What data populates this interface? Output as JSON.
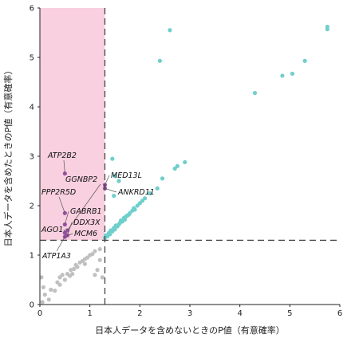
{
  "chart_data": {
    "type": "scatter",
    "title": "",
    "xlabel": "日本人データを含めないときのP値（有意確率）",
    "ylabel": "日本人データを含めたときのP値（有意確率）",
    "xlim": [
      0,
      6
    ],
    "ylim": [
      0,
      6
    ],
    "xticks": [
      "0",
      "1",
      "2",
      "3",
      "4",
      "5",
      "6"
    ],
    "yticks": [
      "0",
      "1",
      "2",
      "3",
      "4",
      "5",
      "6"
    ],
    "threshold": 1.3,
    "highlight_region": {
      "x": [
        0,
        1.3
      ],
      "y": [
        1.3,
        6
      ]
    },
    "colors": {
      "gray": "#c0c0c0",
      "teal": "#6fcfcc",
      "purple": "#9a4fa6",
      "region": "#f9d0df",
      "dashed": "#444444"
    },
    "series": [
      {
        "color": "gray",
        "points": [
          [
            0.05,
            0.05
          ],
          [
            0.1,
            0.2
          ],
          [
            0.18,
            0.1
          ],
          [
            0.22,
            0.3
          ],
          [
            0.3,
            0.28
          ],
          [
            0.35,
            0.45
          ],
          [
            0.4,
            0.4
          ],
          [
            0.45,
            0.6
          ],
          [
            0.5,
            0.5
          ],
          [
            0.55,
            0.62
          ],
          [
            0.6,
            0.58
          ],
          [
            0.62,
            0.7
          ],
          [
            0.68,
            0.72
          ],
          [
            0.72,
            0.8
          ],
          [
            0.75,
            0.76
          ],
          [
            0.8,
            0.85
          ],
          [
            0.85,
            0.88
          ],
          [
            0.9,
            0.92
          ],
          [
            0.95,
            0.95
          ],
          [
            1.0,
            1.0
          ],
          [
            1.05,
            1.02
          ],
          [
            1.1,
            1.08
          ],
          [
            1.2,
            0.9
          ],
          [
            1.15,
            0.7
          ],
          [
            1.25,
            0.55
          ],
          [
            1.2,
            1.12
          ],
          [
            1.1,
            0.6
          ],
          [
            0.03,
            0.55
          ],
          [
            0.07,
            0.35
          ],
          [
            0.4,
            0.55
          ],
          [
            0.9,
            0.82
          ],
          [
            0.65,
            0.62
          ]
        ]
      },
      {
        "color": "teal",
        "points": [
          [
            1.3,
            1.35
          ],
          [
            1.32,
            1.4
          ],
          [
            1.35,
            1.38
          ],
          [
            1.38,
            1.45
          ],
          [
            1.4,
            1.42
          ],
          [
            1.42,
            1.5
          ],
          [
            1.45,
            1.48
          ],
          [
            1.48,
            1.55
          ],
          [
            1.5,
            1.52
          ],
          [
            1.52,
            1.6
          ],
          [
            1.55,
            1.58
          ],
          [
            1.58,
            1.62
          ],
          [
            1.6,
            1.65
          ],
          [
            1.62,
            1.7
          ],
          [
            1.65,
            1.68
          ],
          [
            1.68,
            1.75
          ],
          [
            1.7,
            1.72
          ],
          [
            1.72,
            1.78
          ],
          [
            1.75,
            1.8
          ],
          [
            1.78,
            1.82
          ],
          [
            1.8,
            1.85
          ],
          [
            1.85,
            1.9
          ],
          [
            1.88,
            1.95
          ],
          [
            1.9,
            1.92
          ],
          [
            1.95,
            2.0
          ],
          [
            2.0,
            2.05
          ],
          [
            2.05,
            2.1
          ],
          [
            2.1,
            2.15
          ],
          [
            2.2,
            2.25
          ],
          [
            2.35,
            2.35
          ],
          [
            2.45,
            2.55
          ],
          [
            2.75,
            2.8
          ],
          [
            2.9,
            2.88
          ],
          [
            1.48,
            2.2
          ],
          [
            1.5,
            2.6
          ],
          [
            1.45,
            2.95
          ],
          [
            1.58,
            2.5
          ],
          [
            2.7,
            2.75
          ],
          [
            2.4,
            4.93
          ],
          [
            2.6,
            5.55
          ],
          [
            4.3,
            4.28
          ],
          [
            4.85,
            4.63
          ],
          [
            5.05,
            4.67
          ],
          [
            5.3,
            4.93
          ],
          [
            5.75,
            5.62
          ],
          [
            5.75,
            5.57
          ]
        ]
      },
      {
        "color": "purple",
        "points": [
          [
            0.5,
            2.65
          ],
          [
            1.3,
            2.42
          ],
          [
            1.3,
            2.35
          ],
          [
            0.5,
            1.85
          ],
          [
            0.5,
            1.62
          ],
          [
            0.55,
            1.5
          ],
          [
            0.5,
            1.45
          ],
          [
            0.55,
            1.4
          ],
          [
            0.5,
            1.37
          ]
        ]
      }
    ],
    "annotations": [
      {
        "label": "ATP2B2",
        "point": [
          0.5,
          2.65
        ]
      },
      {
        "label": "MED13L",
        "point": [
          1.3,
          2.42
        ]
      },
      {
        "label": "GGNBP2",
        "point": [
          0.55,
          1.5
        ]
      },
      {
        "label": "ANKRD11",
        "point": [
          1.3,
          2.35
        ]
      },
      {
        "label": "PPP2R5D",
        "point": [
          0.5,
          1.85
        ]
      },
      {
        "label": "GABRB1",
        "point": [
          0.5,
          1.62
        ]
      },
      {
        "label": "DDX3X",
        "point": [
          0.55,
          1.4
        ]
      },
      {
        "label": "AGO1",
        "point": [
          0.5,
          1.45
        ]
      },
      {
        "label": "MCM6",
        "point": [
          0.5,
          1.37
        ]
      },
      {
        "label": "ATP1A3",
        "point": [
          0.5,
          1.37
        ]
      }
    ]
  }
}
